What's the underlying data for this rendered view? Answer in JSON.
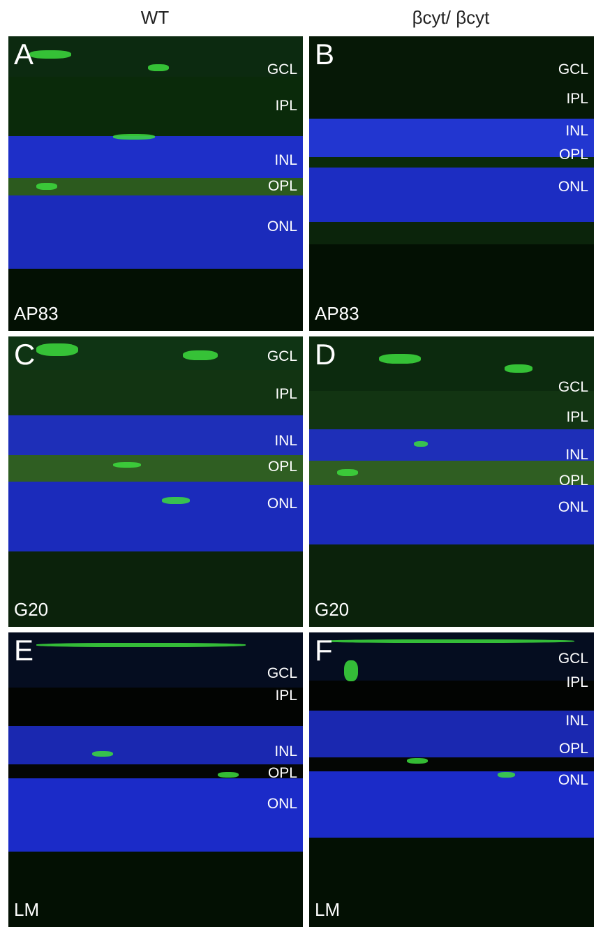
{
  "header": {
    "columns": [
      "WT",
      "βcyt/ βcyt"
    ]
  },
  "panels": [
    {
      "letter": "A",
      "marker": "AP83",
      "layers": [
        "GCL",
        "IPL",
        "INL",
        "OPL",
        "ONL"
      ]
    },
    {
      "letter": "B",
      "marker": "AP83",
      "layers": [
        "GCL",
        "IPL",
        "INL",
        "OPL",
        "ONL"
      ]
    },
    {
      "letter": "C",
      "marker": "G20",
      "layers": [
        "GCL",
        "IPL",
        "INL",
        "OPL",
        "ONL"
      ]
    },
    {
      "letter": "D",
      "marker": "G20",
      "layers": [
        "GCL",
        "IPL",
        "INL",
        "OPL",
        "ONL"
      ]
    },
    {
      "letter": "E",
      "marker": "LM",
      "layers": [
        "GCL",
        "IPL",
        "INL",
        "OPL",
        "ONL"
      ]
    },
    {
      "letter": "F",
      "marker": "LM",
      "layers": [
        "GCL",
        "IPL",
        "INL",
        "OPL",
        "ONL"
      ]
    }
  ]
}
